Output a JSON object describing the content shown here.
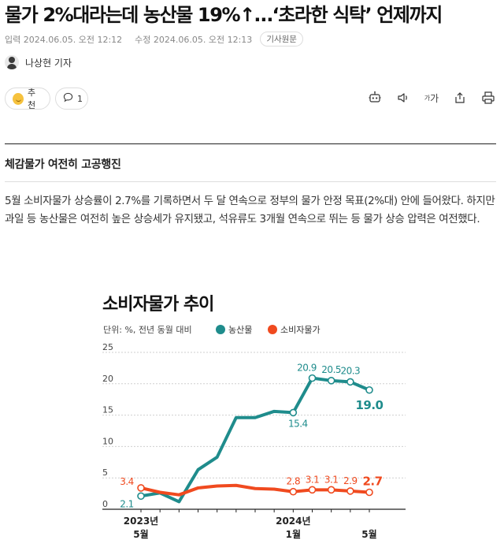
{
  "article": {
    "headline": "물가 2%대라는데 농산물 19%↑…‘초라한 식탁’ 언제까지",
    "published": "입력 2024.06.05. 오전 12:12",
    "updated": "수정 2024.06.05. 오전 12:13",
    "source_tag": "기사원문",
    "author": "나상현 기자",
    "recommend_label": "추천",
    "comment_count": "1",
    "font_size_label": "가가",
    "subheading": "체감물가 여전히 고공행진",
    "body": "5월 소비자물가 상승률이 2.7%를 기록하면서 두 달 연속으로 정부의 물가 안정 목표(2%대) 안에 들어왔다. 하지만 과일 등 농산물은 여전히 높은 상승세가 유지됐고, 석유류도 3개월 연속으로 뛰는 등 물가 상승 압력은 여전했다."
  },
  "colors": {
    "teal": "#1f8c8c",
    "red": "#f04a1f",
    "ink": "#222222"
  },
  "icons": [
    "robot-icon",
    "speaker-icon",
    "font-size-icon",
    "share-icon",
    "print-icon",
    "comment-icon"
  ],
  "chart_data": {
    "type": "line",
    "title": "소비자물가 추이",
    "unit_note": "단위: %, 전년 동월 대비",
    "legend": [
      {
        "name": "농산물",
        "color": "#1f8c8c"
      },
      {
        "name": "소비자물가",
        "color": "#f04a1f"
      }
    ],
    "ylim": [
      0,
      25
    ],
    "yticks": [
      "0",
      "5",
      "10",
      "15",
      "20",
      "25"
    ],
    "x_labels": [
      {
        "index": 0,
        "line1": "2023년",
        "line2": "5월"
      },
      {
        "index": 8,
        "line1": "2024년",
        "line2": "1월"
      },
      {
        "index": 12,
        "line1": "",
        "line2": "5월"
      }
    ],
    "x": [
      "2023.05",
      "2023.06",
      "2023.07",
      "2023.08",
      "2023.09",
      "2023.10",
      "2023.11",
      "2023.12",
      "2024.01",
      "2024.02",
      "2024.03",
      "2024.04",
      "2024.05"
    ],
    "series": [
      {
        "name": "농산물",
        "values": [
          2.1,
          2.6,
          1.2,
          6.3,
          8.3,
          14.6,
          14.6,
          15.6,
          15.4,
          20.9,
          20.5,
          20.3,
          19.0
        ],
        "labels": [
          {
            "index": 0,
            "text": "2.1"
          },
          {
            "index": 8,
            "text": "15.4"
          },
          {
            "index": 9,
            "text": "20.9"
          },
          {
            "index": 10,
            "text": "20.5"
          },
          {
            "index": 11,
            "text": "20.3"
          },
          {
            "index": 12,
            "text": "19.0"
          }
        ]
      },
      {
        "name": "소비자물가",
        "values": [
          3.4,
          2.7,
          2.3,
          3.4,
          3.7,
          3.8,
          3.3,
          3.2,
          2.8,
          3.1,
          3.1,
          2.9,
          2.7
        ],
        "labels": [
          {
            "index": 0,
            "text": "3.4"
          },
          {
            "index": 8,
            "text": "2.8"
          },
          {
            "index": 9,
            "text": "3.1"
          },
          {
            "index": 10,
            "text": "3.1"
          },
          {
            "index": 11,
            "text": "2.9"
          },
          {
            "index": 12,
            "text": "2.7"
          }
        ]
      }
    ]
  }
}
